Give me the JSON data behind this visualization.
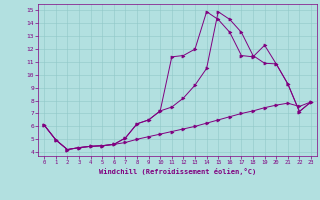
{
  "xlabel": "Windchill (Refroidissement éolien,°C)",
  "background_color": "#b2e0e0",
  "line_color": "#800080",
  "grid_color": "#90c8c8",
  "xlim": [
    -0.5,
    23.5
  ],
  "ylim": [
    3.7,
    15.5
  ],
  "yticks": [
    4,
    5,
    6,
    7,
    8,
    9,
    10,
    11,
    12,
    13,
    14,
    15
  ],
  "xticks": [
    0,
    1,
    2,
    3,
    4,
    5,
    6,
    7,
    8,
    9,
    10,
    11,
    12,
    13,
    14,
    15,
    16,
    17,
    18,
    19,
    20,
    21,
    22,
    23
  ],
  "line1_x": [
    0,
    1,
    2,
    3,
    4,
    5,
    6,
    7,
    8,
    9,
    10,
    11,
    12,
    13,
    14,
    15,
    16,
    17,
    18,
    19,
    20,
    21,
    22,
    23
  ],
  "line1_y": [
    6.1,
    4.95,
    4.2,
    4.35,
    4.45,
    4.5,
    4.6,
    5.1,
    6.2,
    6.5,
    7.2,
    11.4,
    11.5,
    12.0,
    14.9,
    14.3,
    13.3,
    11.5,
    11.4,
    12.3,
    10.85,
    9.3,
    7.15,
    7.9
  ],
  "line2_x": [
    0,
    1,
    2,
    3,
    4,
    5,
    6,
    7,
    8,
    9,
    10,
    11,
    12,
    13,
    14,
    15,
    16,
    17,
    18,
    19,
    20,
    21,
    22,
    23
  ],
  "line2_y": [
    6.1,
    4.95,
    4.2,
    4.35,
    4.45,
    4.5,
    4.6,
    5.1,
    6.2,
    6.5,
    7.2,
    7.5,
    8.2,
    9.2,
    10.5,
    14.9,
    14.3,
    13.3,
    11.5,
    10.9,
    10.85,
    9.3,
    7.15,
    7.9
  ],
  "line3_x": [
    0,
    1,
    2,
    3,
    4,
    5,
    6,
    7,
    8,
    9,
    10,
    11,
    12,
    13,
    14,
    15,
    16,
    17,
    18,
    19,
    20,
    21,
    22,
    23
  ],
  "line3_y": [
    6.1,
    4.95,
    4.2,
    4.35,
    4.45,
    4.5,
    4.6,
    4.75,
    5.0,
    5.2,
    5.4,
    5.6,
    5.8,
    6.0,
    6.25,
    6.5,
    6.75,
    7.0,
    7.2,
    7.45,
    7.65,
    7.8,
    7.55,
    7.9
  ]
}
